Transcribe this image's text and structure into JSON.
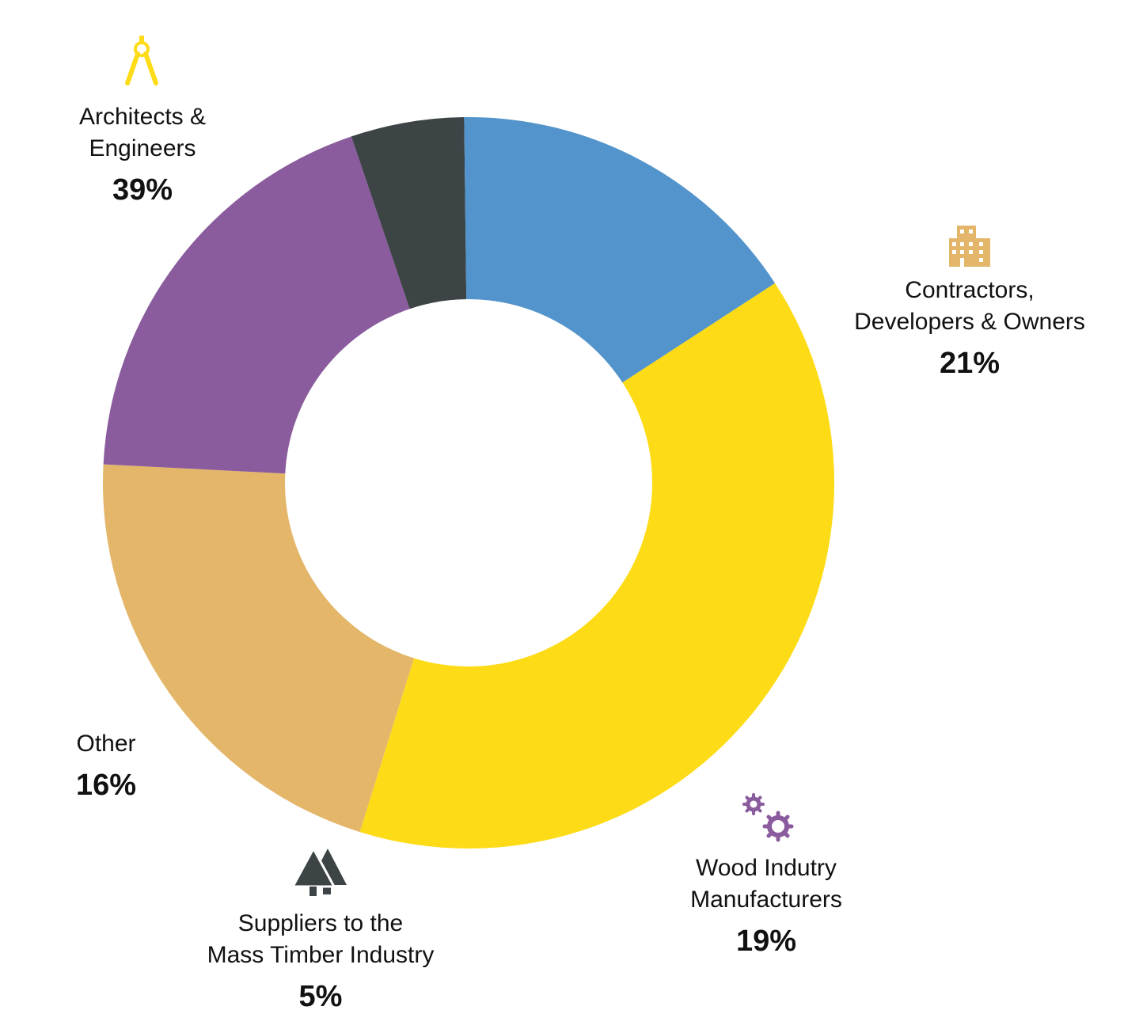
{
  "chart_data": {
    "type": "donut",
    "title": "",
    "unit": "%",
    "categories": [
      "Architects & Engineers",
      "Contractors, Developers & Owners",
      "Wood Indutry Manufacturers",
      "Suppliers to the Mass Timber Industry",
      "Other"
    ],
    "values": [
      39,
      21,
      19,
      5,
      16
    ],
    "colors": [
      "#FDDC17",
      "#E3B66A",
      "#8A5C9D",
      "#3C4446",
      "#5294CB"
    ],
    "labels": [
      {
        "line1": "Architects &",
        "line2": "Engineers",
        "value": "39%",
        "icon": "drafting-compass-icon"
      },
      {
        "line1": "Contractors,",
        "line2": "Developers & Owners",
        "value": "21%",
        "icon": "building-icon"
      },
      {
        "line1": "Wood Indutry",
        "line2": "Manufacturers",
        "value": "19%",
        "icon": "gears-icon"
      },
      {
        "line1": "Suppliers to the",
        "line2": "Mass Timber Industry",
        "value": "5%",
        "icon": "trees-icon"
      },
      {
        "line1": "Other",
        "line2": "",
        "value": "16%",
        "icon": ""
      }
    ]
  }
}
